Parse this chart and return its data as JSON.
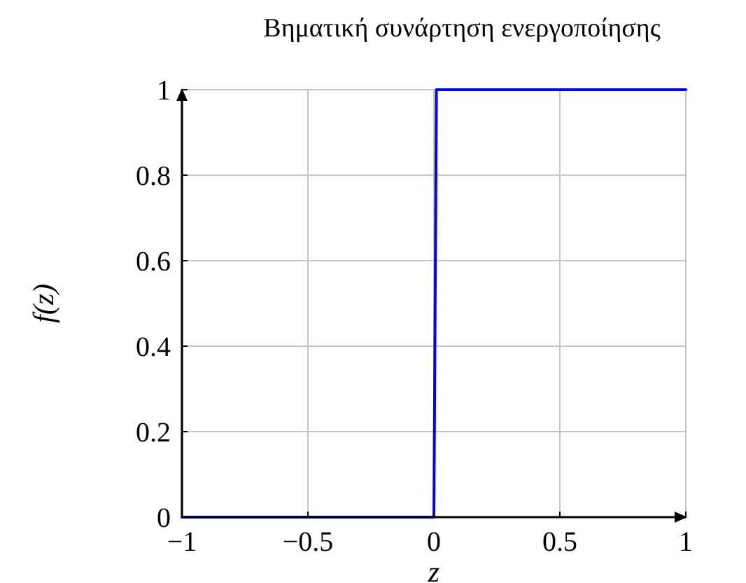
{
  "chart_data": {
    "type": "line",
    "title": "Βηματική συνάρτηση ενεργοποίησης",
    "xlabel": "z",
    "ylabel": "f(z)",
    "x": [
      -1,
      0,
      0.01,
      1
    ],
    "series": [
      {
        "color": "#0000ff",
        "values": [
          0,
          0,
          1,
          1
        ]
      }
    ],
    "xlim": [
      -1,
      1
    ],
    "ylim": [
      0,
      1
    ],
    "xticks": [
      {
        "value": -1,
        "label": "−1"
      },
      {
        "value": -0.5,
        "label": "−0.5"
      },
      0,
      0.5,
      1
    ],
    "yticks": [
      0,
      0.2,
      0.4,
      0.6,
      0.8,
      1
    ],
    "grid": true
  }
}
